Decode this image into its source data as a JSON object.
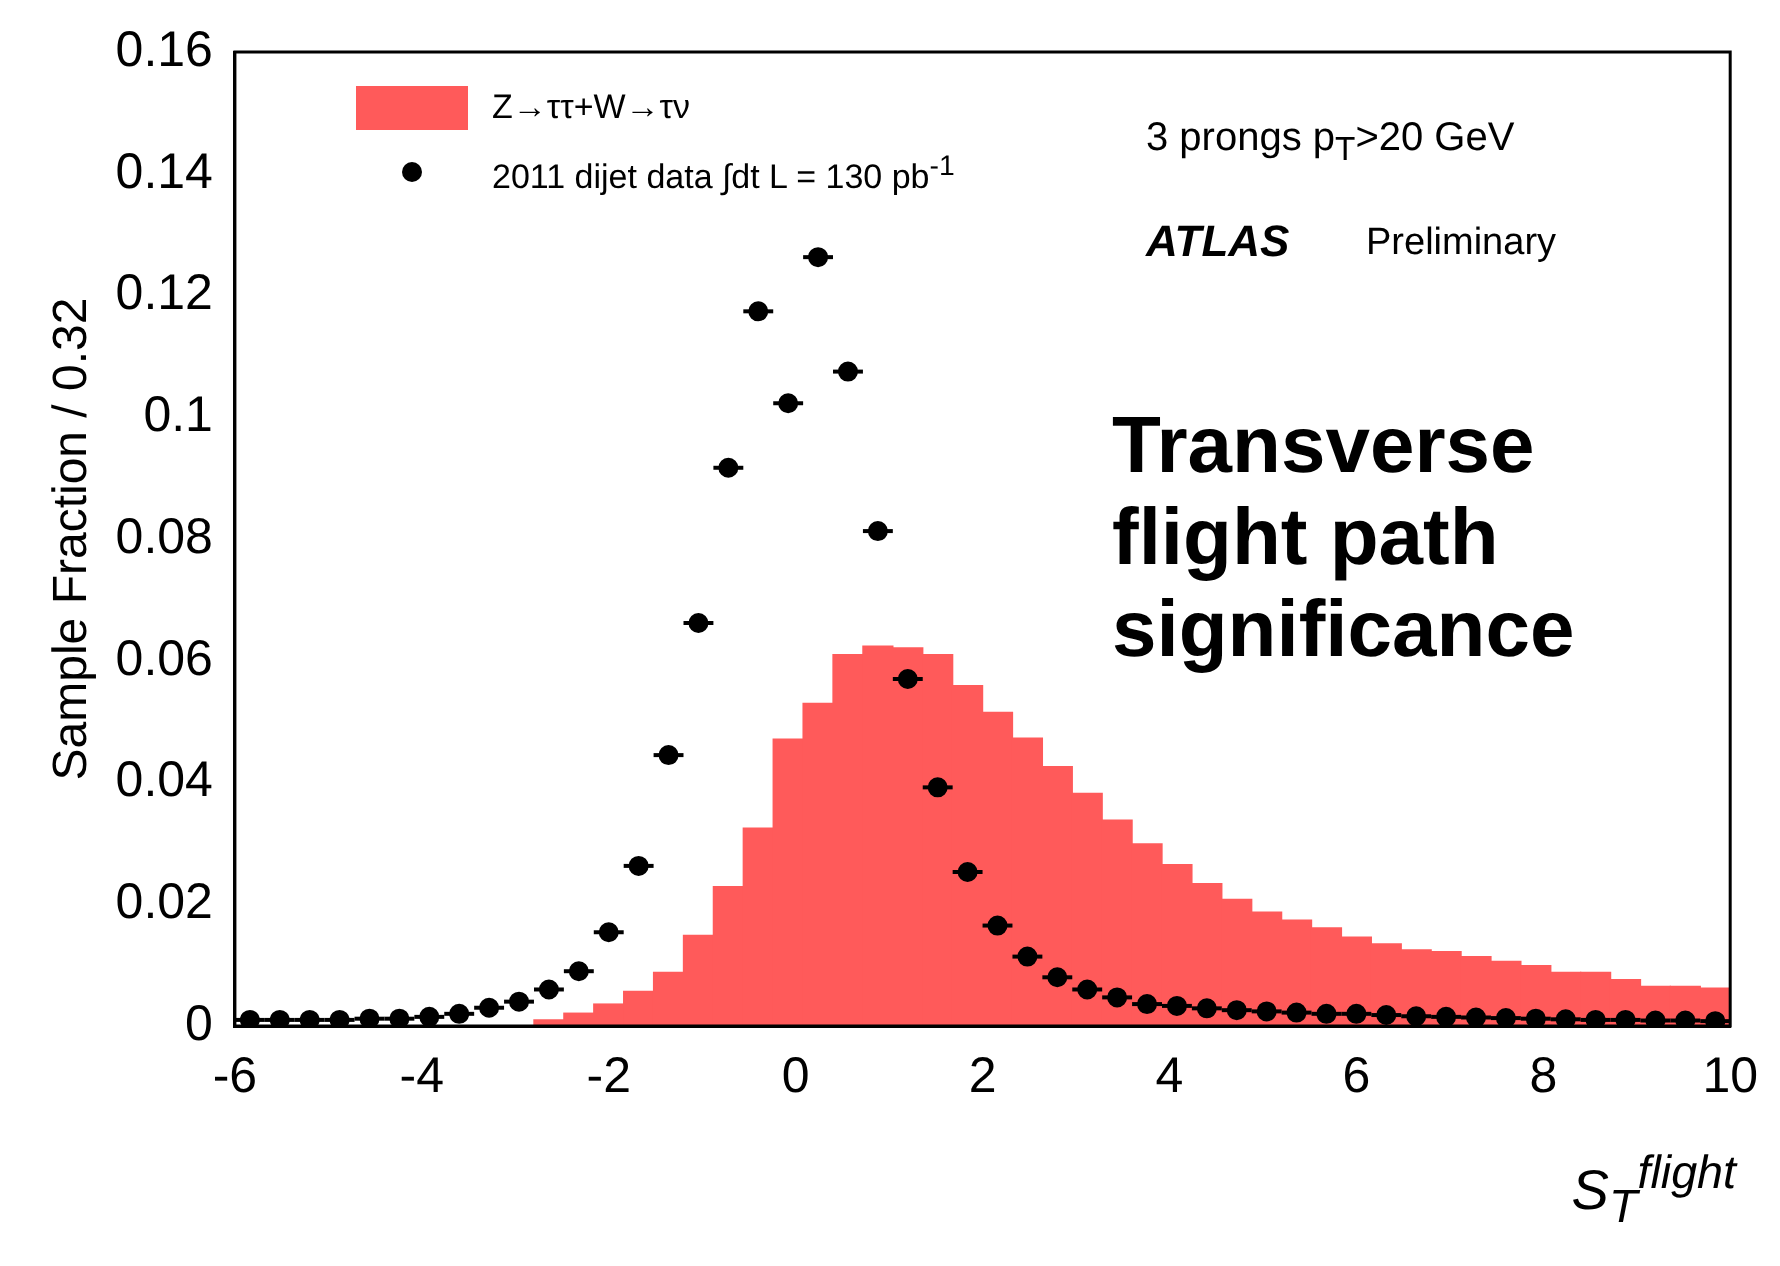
{
  "chart_data": {
    "type": "histogram",
    "xlabel": "S$_{T}$$^{flight}$",
    "ylabel": "Sample Fraction / 0.32",
    "bins": [
      -6,
      -5.68,
      -5.36,
      -5.04,
      -4.72,
      -4.4,
      -4.08,
      -3.76,
      -3.44,
      -3.12,
      -2.8,
      -2.48,
      -2.16,
      -1.84,
      -1.52,
      -1.2,
      -0.88,
      -0.56,
      -0.24,
      0.08,
      0.4,
      0.72,
      1.04,
      1.36,
      1.68,
      2,
      2.32,
      2.64,
      2.96,
      3.28,
      3.6,
      3.92,
      4.24,
      4.56,
      4.88,
      5.2,
      5.52,
      5.84,
      6.16,
      6.48,
      6.8,
      7.12,
      7.44,
      7.76,
      8.08,
      8.4,
      8.72,
      9.04,
      9.36,
      9.68,
      10
    ],
    "series": [
      {
        "type": "histogram",
        "name": "Z→ττ+W→τν",
        "color": "#ff5a5a",
        "values": [
          0,
          0,
          0,
          0,
          0,
          0,
          0,
          0,
          0,
          0,
          0.001,
          0.0021,
          0.0036,
          0.0057,
          0.0088,
          0.0149,
          0.0229,
          0.0325,
          0.0471,
          0.053,
          0.061,
          0.0624,
          0.0621,
          0.061,
          0.0559,
          0.0515,
          0.0473,
          0.0426,
          0.0382,
          0.0338,
          0.0299,
          0.0265,
          0.0234,
          0.0208,
          0.0187,
          0.0174,
          0.0161,
          0.0146,
          0.0135,
          0.0125,
          0.0122,
          0.0114,
          0.0106,
          0.0099,
          0.0088,
          0.0088,
          0.0076,
          0.0065,
          0.0065,
          0.0062
        ]
      },
      {
        "type": "scatter",
        "name": "2011 dijet data ∫dt L = 130 pb$^{-1}$",
        "color": "#000000",
        "marker": "circle",
        "x": [
          -5.84,
          -5.52,
          -5.2,
          -4.88,
          -4.56,
          -4.24,
          -3.92,
          -3.6,
          -3.28,
          -2.96,
          -2.64,
          -2.32,
          -2,
          -1.68,
          -1.36,
          -1.04,
          -0.72,
          -0.4,
          -0.08,
          0.24,
          0.56,
          0.88,
          1.2,
          1.52,
          1.84,
          2.16,
          2.48,
          2.8,
          3.12,
          3.44,
          3.76,
          4.08,
          4.4,
          4.72,
          5.04,
          5.36,
          5.68,
          6,
          6.32,
          6.64,
          6.96,
          7.28,
          7.6,
          7.92,
          8.24,
          8.56,
          8.88,
          9.2,
          9.52,
          9.84
        ],
        "values": [
          0.001,
          0.001,
          0.001,
          0.001,
          0.0012,
          0.0012,
          0.0015,
          0.002,
          0.003,
          0.004,
          0.006,
          0.009,
          0.0154,
          0.0263,
          0.0445,
          0.0662,
          0.0917,
          0.1174,
          0.1023,
          0.1263,
          0.1075,
          0.0813,
          0.057,
          0.0392,
          0.0253,
          0.0165,
          0.0114,
          0.008,
          0.006,
          0.0047,
          0.0036,
          0.0033,
          0.0029,
          0.0026,
          0.0024,
          0.0022,
          0.002,
          0.002,
          0.0018,
          0.0016,
          0.0015,
          0.0014,
          0.0013,
          0.0012,
          0.0011,
          0.001,
          0.001,
          0.0009,
          0.0009,
          0.0008
        ],
        "xerrors": [
          0.16,
          0.16,
          0.16,
          0.16,
          0.16,
          0.16,
          0.16,
          0.16,
          0.16,
          0.16,
          0.16,
          0.16,
          0.16,
          0.16,
          0.16,
          0.16,
          0.16,
          0.16,
          0.16,
          0.16,
          0.16,
          0.16,
          0.16,
          0.16,
          0.16,
          0.16,
          0.16,
          0.16,
          0.16,
          0.16,
          0.16,
          0.16,
          0.16,
          0.16,
          0.16,
          0.16,
          0.16,
          0.16,
          0.16,
          0.16,
          0.16,
          0.16,
          0.16,
          0.16,
          0.16,
          0.16,
          0.16,
          0.16,
          0.16,
          0.16
        ]
      }
    ],
    "xlim": [
      -6,
      10
    ],
    "xticks": [
      -6,
      -4,
      -2,
      0,
      2,
      4,
      6,
      8,
      10
    ],
    "ylim": [
      0,
      0.16
    ],
    "yticks": [
      0,
      0.02,
      0.04,
      0.06,
      0.08,
      0.1,
      0.12,
      0.14,
      0.16
    ],
    "grid": false,
    "legend": "top left",
    "annotations": [
      "3 prongs p$_{T}$>20 GeV",
      "ATLAS",
      "Preliminary",
      "Transverse flight path significance"
    ]
  }
}
